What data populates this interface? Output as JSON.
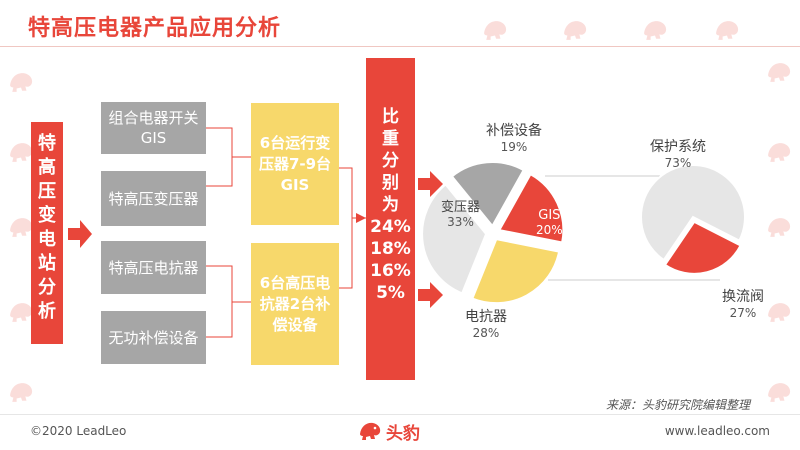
{
  "header": {
    "title": "特高压电器产品应用分析"
  },
  "left_box": {
    "text": "特高压变电站分析"
  },
  "gray_boxes": [
    {
      "text": "组合电器开关GIS"
    },
    {
      "text": "特高压变压器"
    },
    {
      "text": "特高压电抗器"
    },
    {
      "text": "无功补偿设备"
    }
  ],
  "yellow_boxes": [
    {
      "text": "6台运行变压器7-9台GIS"
    },
    {
      "text": "6台高压电抗器2台补偿设备"
    }
  ],
  "center_box": {
    "lines": [
      "比",
      "重",
      "分",
      "别",
      "为",
      "24%",
      "18%",
      "16%",
      "5%"
    ]
  },
  "chart_data": [
    {
      "type": "pie",
      "slices": [
        {
          "label": "补偿设备",
          "value": 19,
          "pct_text": "19%",
          "color": "#a6a6a6"
        },
        {
          "label": "GIS",
          "value": 20,
          "pct_text": "20%",
          "color": "#e8463a"
        },
        {
          "label": "电抗器",
          "value": 28,
          "pct_text": "28%",
          "color": "#f7d86b"
        },
        {
          "label": "变压器",
          "value": 33,
          "pct_text": "33%",
          "color": "#e6e6e6"
        }
      ]
    },
    {
      "type": "pie",
      "slices": [
        {
          "label": "保护系统",
          "value": 73,
          "pct_text": "73%",
          "color": "#e6e6e6"
        },
        {
          "label": "换流阀",
          "value": 27,
          "pct_text": "27%",
          "color": "#e8463a"
        }
      ]
    }
  ],
  "footer": {
    "source": "来源：头豹研究院编辑整理",
    "copyright": "©2020 LeadLeo",
    "logo_text": "头豹",
    "website": "www.leadleo.com"
  },
  "colors": {
    "accent": "#e8463a",
    "gray": "#a6a6a6",
    "yellow": "#f7d86b",
    "light": "#e6e6e6"
  }
}
